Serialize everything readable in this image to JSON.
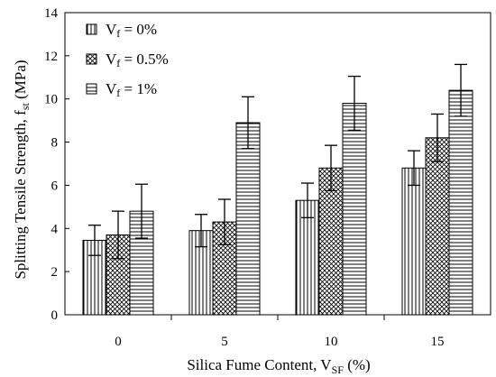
{
  "chart_data": {
    "type": "bar",
    "categories": [
      "0",
      "5",
      "10",
      "15"
    ],
    "series": [
      {
        "name": "Vf = 0%",
        "legend_main": "V",
        "legend_sub": "f",
        "legend_rest": " = 0%",
        "pattern": "vertical-lines",
        "values": [
          3.45,
          3.9,
          5.3,
          6.8
        ],
        "errors": [
          0.7,
          0.75,
          0.8,
          0.8
        ]
      },
      {
        "name": "Vf = 0.5%",
        "legend_main": "V",
        "legend_sub": "f",
        "legend_rest": " = 0.5%",
        "pattern": "crosshatch",
        "values": [
          3.7,
          4.3,
          6.8,
          8.2
        ],
        "errors": [
          1.1,
          1.05,
          1.05,
          1.1
        ]
      },
      {
        "name": "Vf = 1%",
        "legend_main": "V",
        "legend_sub": "f",
        "legend_rest": " = 1%",
        "pattern": "horizontal-lines",
        "values": [
          4.8,
          8.9,
          9.8,
          10.4
        ],
        "errors": [
          1.25,
          1.2,
          1.25,
          1.2
        ]
      }
    ],
    "xlabel_main": "Silica Fume Content, V",
    "xlabel_sub": "SF",
    "xlabel_rest": " (%)",
    "ylabel_main": "Splitting Tensile Strength, f",
    "ylabel_sub": "st",
    "ylabel_rest": " (MPa)",
    "ylim": [
      0,
      14
    ],
    "yticks": [
      "0",
      "2",
      "4",
      "6",
      "8",
      "10",
      "12",
      "14"
    ],
    "legend_position": "top-left",
    "grid": false
  }
}
